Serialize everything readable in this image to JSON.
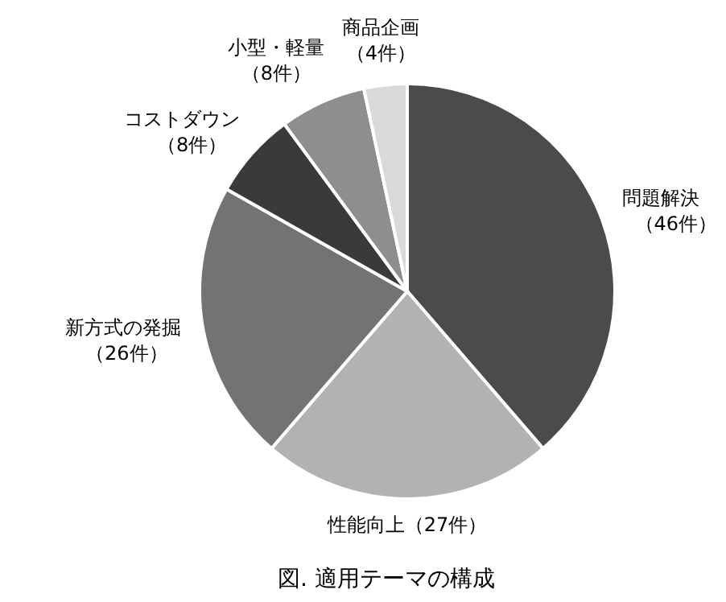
{
  "chart_data": {
    "type": "pie",
    "categories": [
      "問題解決",
      "性能向上",
      "新方式の発掘",
      "コストダウン",
      "小型・軽量",
      "商品企画"
    ],
    "values": [
      46,
      27,
      26,
      8,
      8,
      4
    ],
    "value_labels": [
      "（46件）",
      "（27件）",
      "（26件）",
      "（8件）",
      "（8件）",
      "（4件）"
    ],
    "colors": [
      "#4b4b4b",
      "#b2b2b2",
      "#737373",
      "#3a3a3a",
      "#8e8e8e",
      "#d9d9d9"
    ],
    "annotations": [
      "図. 適用テーマの構成"
    ]
  }
}
